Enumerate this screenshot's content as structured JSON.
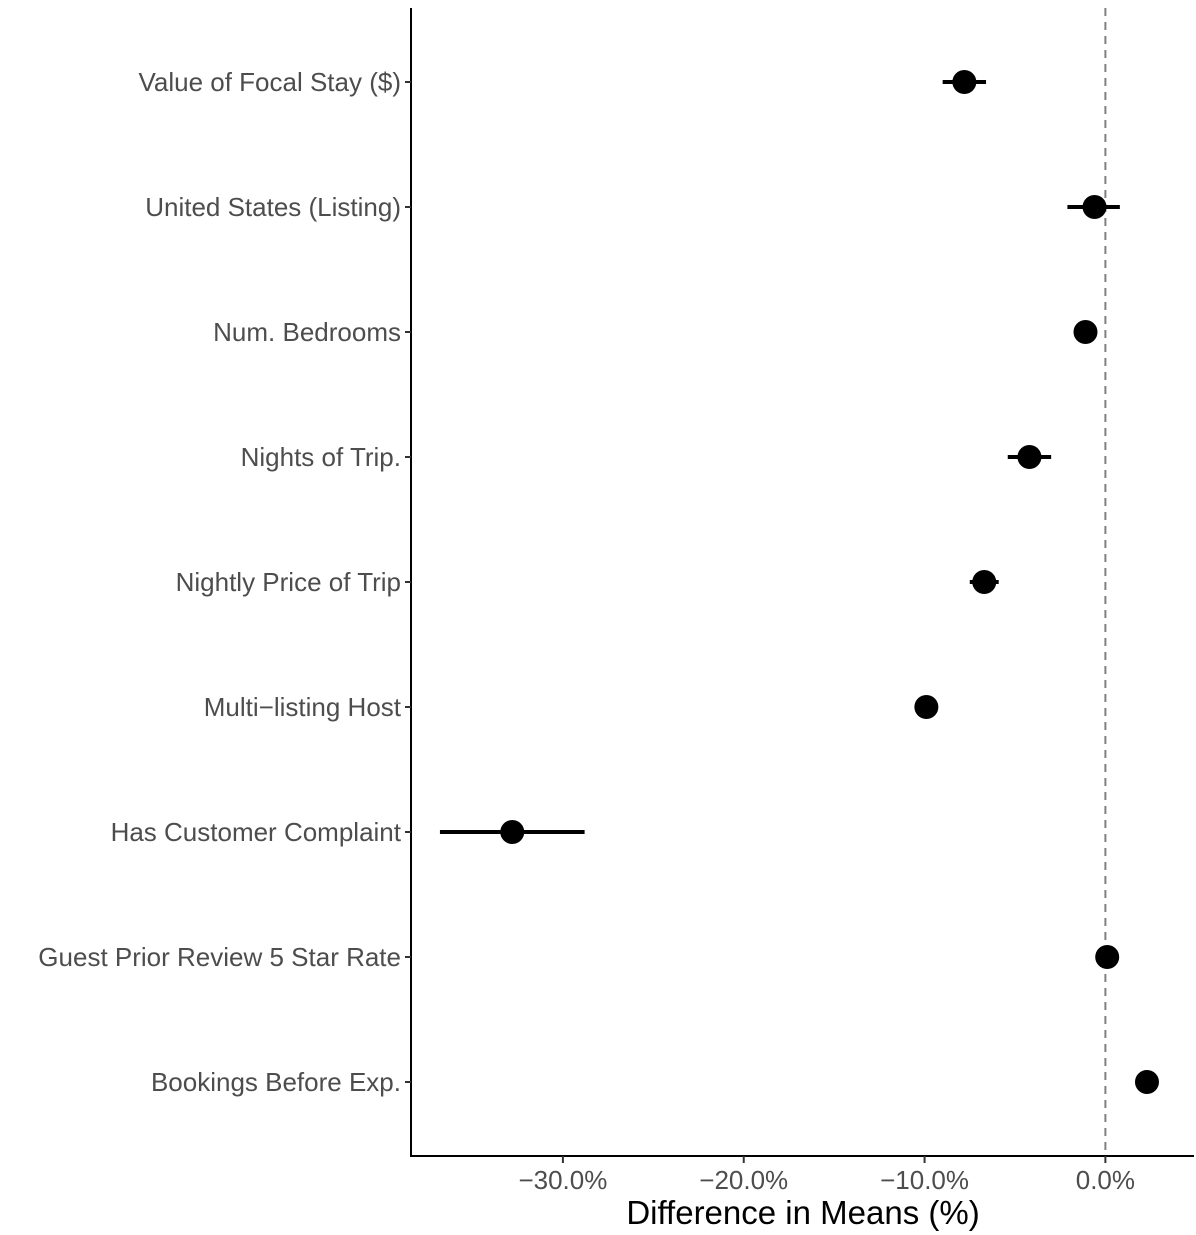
{
  "chart_data": {
    "type": "scatter",
    "title": "",
    "xlabel": "Difference in Means (%)",
    "ylabel": "",
    "xlim": [
      -38.4,
      4.9
    ],
    "x_ticks": [
      -30,
      -20,
      -10,
      0
    ],
    "x_tick_labels": [
      "−30.0%",
      "−20.0%",
      "−10.0%",
      "0.0%"
    ],
    "reference_line": {
      "x": 0,
      "style": "dashed",
      "color": "#808080"
    },
    "grid": false,
    "legend": "none",
    "point_color": "#000000",
    "categories": [
      "Value of Focal Stay ($)",
      "United States (Listing)",
      "Num. Bedrooms",
      "Nights of Trip.",
      "Nightly Price of Trip",
      "Multi−listing Host",
      "Has Customer Complaint",
      "Guest Prior Review 5 Star Rate",
      "Bookings Before Exp."
    ],
    "series": [
      {
        "estimates": [
          -7.8,
          -0.6,
          -1.1,
          -4.2,
          -6.7,
          -9.9,
          -32.8,
          0.1,
          2.3
        ],
        "ci_low": [
          -9.0,
          -2.1,
          -1.1,
          -5.4,
          -7.5,
          -9.9,
          -36.8,
          0.1,
          2.3
        ],
        "ci_high": [
          -6.6,
          0.8,
          -1.1,
          -3.0,
          -5.9,
          -9.9,
          -28.8,
          0.1,
          2.3
        ]
      }
    ]
  }
}
